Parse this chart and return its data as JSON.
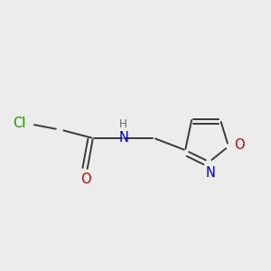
{
  "bg_color": "#ececec",
  "bond_color": "#3a3a3a",
  "bond_width": 1.4,
  "atom_colors": {
    "Cl": "#228b00",
    "O": "#cc0000",
    "N": "#0000cc",
    "H": "#6a6a6a"
  },
  "figsize": [
    3.0,
    3.0
  ],
  "dpi": 100,
  "font_size": 10.5
}
